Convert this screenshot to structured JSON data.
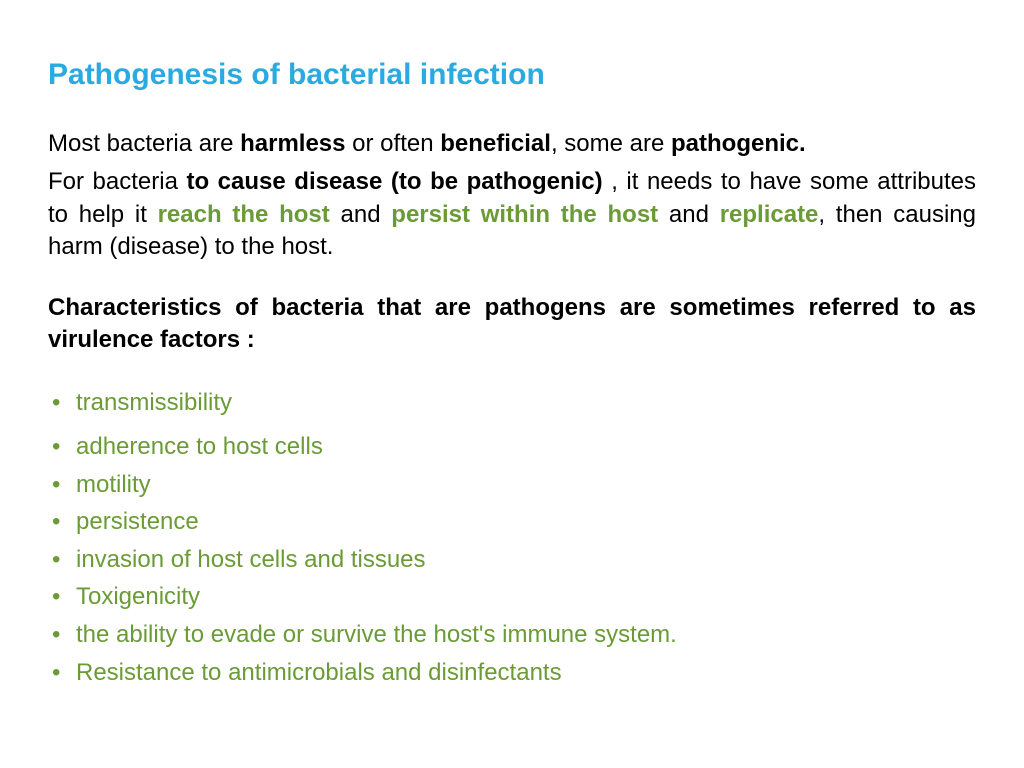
{
  "title": "Pathogenesis of bacterial infection",
  "colors": {
    "title": "#29abe2",
    "body_text": "#000000",
    "green_emphasis": "#6b9b37",
    "bullet": "#6b9b37",
    "background": "#ffffff"
  },
  "typography": {
    "font_family": "Comic Sans MS",
    "title_fontsize": 30,
    "body_fontsize": 24,
    "title_weight": "bold"
  },
  "para1": {
    "t1": "Most bacteria are ",
    "b1": "harmless",
    "t2": " or often ",
    "b2": "beneficial",
    "t3": ", some are ",
    "b3": "pathogenic."
  },
  "para2": {
    "t1": " For bacteria ",
    "b1": "to cause disease (to be pathogenic)",
    "t2": " , it needs to have some attributes to help it ",
    "g1": "reach the host",
    "t3": " and ",
    "g2": "persist within the host",
    "t4": " and ",
    "g3": "replicate",
    "t5": ", then causing harm (disease) to the host."
  },
  "section_label": "Characteristics of bacteria that are pathogens are sometimes referred to as virulence factors :",
  "bullets": [
    "transmissibility",
    "adherence to host cells",
    "motility",
    "persistence",
    "invasion of host cells and tissues",
    "Toxigenicity",
    "the ability to evade or survive the host's immune system.",
    "Resistance to antimicrobials and disinfectants"
  ]
}
